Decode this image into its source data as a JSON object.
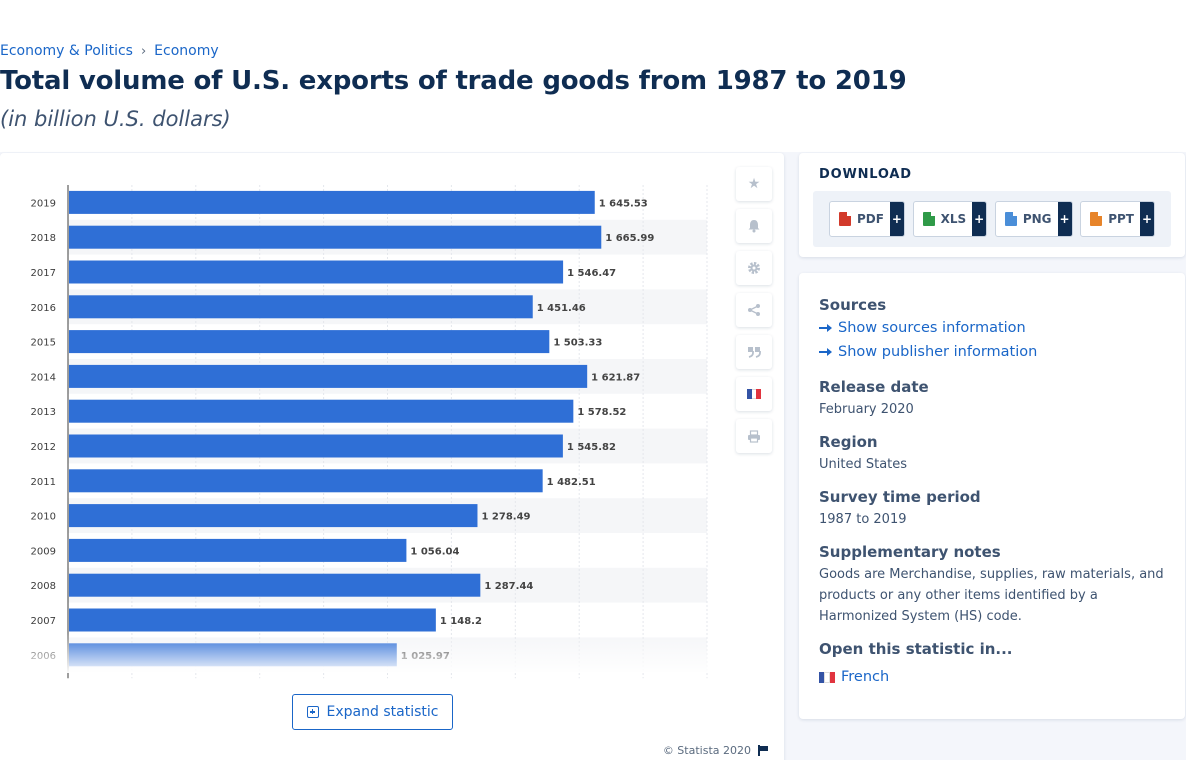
{
  "breadcrumb": {
    "items": [
      "Economy & Politics",
      "Economy"
    ],
    "separator": "›"
  },
  "title": "Total volume of U.S. exports of trade goods from 1987 to 2019",
  "subtitle": "(in billion U.S. dollars)",
  "chart_data": {
    "type": "bar",
    "orientation": "horizontal",
    "categories": [
      "2019",
      "2018",
      "2017",
      "2016",
      "2015",
      "2014",
      "2013",
      "2012",
      "2011",
      "2010",
      "2009",
      "2008",
      "2007",
      "2006"
    ],
    "values": [
      1645.53,
      1665.99,
      1546.47,
      1451.46,
      1503.33,
      1621.87,
      1578.52,
      1545.82,
      1482.51,
      1278.49,
      1056.04,
      1287.44,
      1148.2,
      1025.97
    ],
    "value_labels": [
      "1 645.53",
      "1 665.99",
      "1 546.47",
      "1 451.46",
      "1 503.33",
      "1 621.87",
      "1 578.52",
      "1 545.82",
      "1 482.51",
      "1 278.49",
      "1 056.04",
      "1 287.44",
      "1 148.2",
      "1 025.97"
    ],
    "xlim": [
      0,
      2000
    ],
    "grid": true,
    "bar_color": "#2f6fd6"
  },
  "expand_label": "Expand statistic",
  "copyright": "© Statista 2020",
  "tools": [
    "star-icon",
    "bell-icon",
    "gear-icon",
    "share-icon",
    "quote-icon",
    "french-flag-icon",
    "print-icon"
  ],
  "download": {
    "title": "DOWNLOAD",
    "buttons": [
      {
        "label": "PDF",
        "plus": "+",
        "color": "#d23a2b"
      },
      {
        "label": "XLS",
        "plus": "+",
        "color": "#2f9a48"
      },
      {
        "label": "PNG",
        "plus": "+",
        "color": "#4a8ed8"
      },
      {
        "label": "PPT",
        "plus": "+",
        "color": "#e7842a"
      }
    ]
  },
  "info": {
    "sources_title": "Sources",
    "show_sources": "Show sources information",
    "show_publisher": "Show publisher information",
    "release_title": "Release date",
    "release_value": "February 2020",
    "region_title": "Region",
    "region_value": "United States",
    "survey_title": "Survey time period",
    "survey_value": "1987 to 2019",
    "notes_title": "Supplementary notes",
    "notes_value": "Goods are Merchandise, supplies, raw materials, and products or any other items identified by a Harmonized System (HS) code.",
    "open_title": "Open this statistic in...",
    "open_french": "French"
  }
}
